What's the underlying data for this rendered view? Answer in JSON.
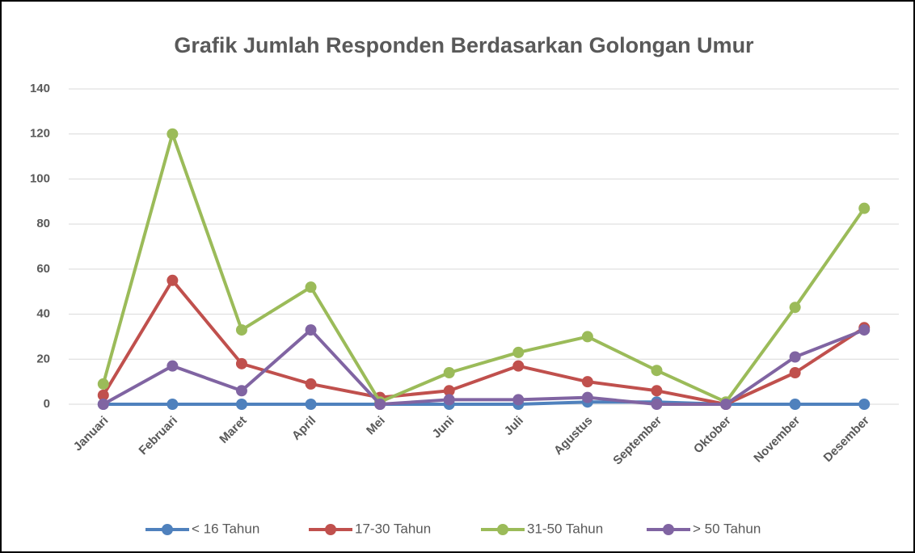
{
  "chart_data": {
    "type": "line",
    "title": "Grafik Jumlah Responden Berdasarkan Golongan Umur",
    "categories": [
      "Januari",
      "Februari",
      "Maret",
      "April",
      "Mei",
      "Juni",
      "Juli",
      "Agustus",
      "September",
      "Oktober",
      "November",
      "Desember"
    ],
    "series": [
      {
        "name": "< 16 Tahun",
        "color": "#4f81bd",
        "values": [
          0,
          0,
          0,
          0,
          0,
          0,
          0,
          1,
          1,
          0,
          0,
          0
        ]
      },
      {
        "name": "17-30 Tahun",
        "color": "#c0504d",
        "values": [
          4,
          55,
          18,
          9,
          3,
          6,
          17,
          10,
          6,
          0,
          14,
          34
        ]
      },
      {
        "name": "31-50 Tahun",
        "color": "#9bbb59",
        "values": [
          9,
          120,
          33,
          52,
          1,
          14,
          23,
          30,
          15,
          1,
          43,
          87
        ]
      },
      {
        "name": "> 50 Tahun",
        "color": "#8064a2",
        "values": [
          0,
          17,
          6,
          33,
          0,
          2,
          2,
          3,
          0,
          0,
          21,
          33
        ]
      }
    ],
    "ylim": [
      0,
      140
    ],
    "yticks": [
      0,
      20,
      40,
      60,
      80,
      100,
      120,
      140
    ],
    "grid": true,
    "legend": "bottom"
  }
}
